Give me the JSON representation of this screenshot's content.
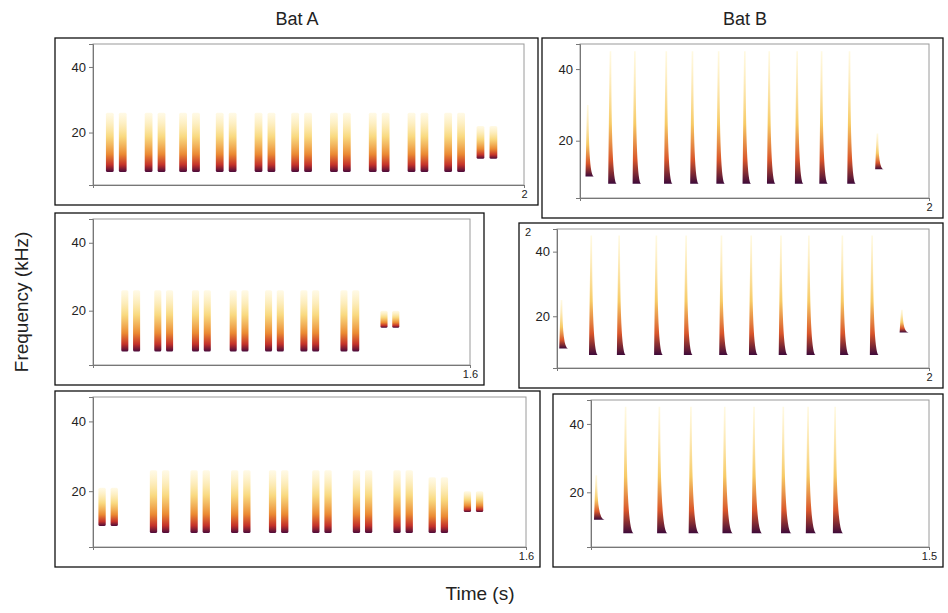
{
  "column_titles": [
    "Bat A",
    "Bat B"
  ],
  "y_label": "Frequency (kHz)",
  "x_label": "Time (s)",
  "chart_data": [
    {
      "type": "spectrogram",
      "marker": "double-streak",
      "xlim": [
        0,
        2
      ],
      "xticks": [
        2
      ],
      "ylim": [
        4,
        47
      ],
      "yticks": [
        20,
        40
      ],
      "call_duration": 0.12,
      "calls": [
        {
          "time": 0.06,
          "low": 8,
          "high": 26
        },
        {
          "time": 0.24,
          "low": 8,
          "high": 26
        },
        {
          "time": 0.4,
          "low": 8,
          "high": 26
        },
        {
          "time": 0.57,
          "low": 8,
          "high": 26
        },
        {
          "time": 0.75,
          "low": 8,
          "high": 26
        },
        {
          "time": 0.92,
          "low": 8,
          "high": 26
        },
        {
          "time": 1.1,
          "low": 8,
          "high": 26
        },
        {
          "time": 1.28,
          "low": 8,
          "high": 26
        },
        {
          "time": 1.46,
          "low": 8,
          "high": 26
        },
        {
          "time": 1.63,
          "low": 8,
          "high": 26
        },
        {
          "time": 1.78,
          "low": 12,
          "high": 22
        }
      ]
    },
    {
      "type": "spectrogram",
      "marker": "double-streak",
      "xlim": [
        0,
        1.6
      ],
      "xticks": [
        1.6
      ],
      "ylim": [
        4,
        47
      ],
      "yticks": [
        20,
        40
      ],
      "call_duration": 0.1,
      "calls": [
        {
          "time": 0.12,
          "low": 8,
          "high": 26
        },
        {
          "time": 0.26,
          "low": 8,
          "high": 26
        },
        {
          "time": 0.42,
          "low": 8,
          "high": 26
        },
        {
          "time": 0.58,
          "low": 8,
          "high": 26
        },
        {
          "time": 0.73,
          "low": 8,
          "high": 26
        },
        {
          "time": 0.88,
          "low": 8,
          "high": 26
        },
        {
          "time": 1.05,
          "low": 8,
          "high": 26
        },
        {
          "time": 1.22,
          "low": 15,
          "high": 20
        }
      ]
    },
    {
      "type": "spectrogram",
      "marker": "double-streak",
      "xlim": [
        0,
        1.6
      ],
      "xticks": [
        1.6
      ],
      "ylim": [
        4,
        47
      ],
      "yticks": [
        20,
        40
      ],
      "call_duration": 0.09,
      "calls": [
        {
          "time": 0.02,
          "low": 10,
          "high": 21
        },
        {
          "time": 0.21,
          "low": 8,
          "high": 26
        },
        {
          "time": 0.36,
          "low": 8,
          "high": 26
        },
        {
          "time": 0.51,
          "low": 8,
          "high": 26
        },
        {
          "time": 0.65,
          "low": 8,
          "high": 26
        },
        {
          "time": 0.81,
          "low": 8,
          "high": 26
        },
        {
          "time": 0.96,
          "low": 8,
          "high": 26
        },
        {
          "time": 1.11,
          "low": 8,
          "high": 26
        },
        {
          "time": 1.24,
          "low": 8,
          "high": 24
        },
        {
          "time": 1.37,
          "low": 14,
          "high": 20
        }
      ]
    },
    {
      "type": "spectrogram",
      "marker": "sweep",
      "xlim": [
        0,
        2
      ],
      "xticks": [
        2
      ],
      "ylim": [
        4,
        47
      ],
      "yticks": [
        20,
        40
      ],
      "call_duration": 0.04,
      "calls": [
        {
          "time": 0.04,
          "low": 10,
          "high": 30
        },
        {
          "time": 0.17,
          "low": 8,
          "high": 45
        },
        {
          "time": 0.31,
          "low": 8,
          "high": 45
        },
        {
          "time": 0.49,
          "low": 8,
          "high": 45
        },
        {
          "time": 0.64,
          "low": 8,
          "high": 45
        },
        {
          "time": 0.79,
          "low": 8,
          "high": 45
        },
        {
          "time": 0.94,
          "low": 8,
          "high": 45
        },
        {
          "time": 1.08,
          "low": 8,
          "high": 45
        },
        {
          "time": 1.24,
          "low": 8,
          "high": 45
        },
        {
          "time": 1.38,
          "low": 8,
          "high": 45
        },
        {
          "time": 1.54,
          "low": 8,
          "high": 45
        },
        {
          "time": 1.7,
          "low": 12,
          "high": 22
        }
      ]
    },
    {
      "type": "spectrogram",
      "marker": "sweep",
      "xlim": [
        0,
        2
      ],
      "xticks": [
        2
      ],
      "ylim": [
        4,
        47
      ],
      "yticks": [
        20,
        40
      ],
      "call_duration": 0.04,
      "annotations": [
        "2"
      ],
      "calls": [
        {
          "time": 0.02,
          "low": 10,
          "high": 25
        },
        {
          "time": 0.18,
          "low": 8,
          "high": 45
        },
        {
          "time": 0.33,
          "low": 8,
          "high": 45
        },
        {
          "time": 0.53,
          "low": 8,
          "high": 45
        },
        {
          "time": 0.69,
          "low": 8,
          "high": 45
        },
        {
          "time": 0.88,
          "low": 8,
          "high": 45
        },
        {
          "time": 1.04,
          "low": 8,
          "high": 45
        },
        {
          "time": 1.2,
          "low": 8,
          "high": 45
        },
        {
          "time": 1.35,
          "low": 8,
          "high": 45
        },
        {
          "time": 1.53,
          "low": 8,
          "high": 45
        },
        {
          "time": 1.69,
          "low": 8,
          "high": 45
        },
        {
          "time": 1.85,
          "low": 15,
          "high": 22
        }
      ]
    },
    {
      "type": "spectrogram",
      "marker": "sweep",
      "xlim": [
        0,
        1.5
      ],
      "xticks": [
        1.5
      ],
      "ylim": [
        4,
        47
      ],
      "yticks": [
        20,
        40
      ],
      "call_duration": 0.04,
      "calls": [
        {
          "time": 0.02,
          "low": 12,
          "high": 25
        },
        {
          "time": 0.15,
          "low": 8,
          "high": 45
        },
        {
          "time": 0.3,
          "low": 8,
          "high": 45
        },
        {
          "time": 0.44,
          "low": 8,
          "high": 45
        },
        {
          "time": 0.59,
          "low": 8,
          "high": 45
        },
        {
          "time": 0.72,
          "low": 8,
          "high": 45
        },
        {
          "time": 0.85,
          "low": 8,
          "high": 45
        },
        {
          "time": 0.96,
          "low": 8,
          "high": 45
        },
        {
          "time": 1.08,
          "low": 8,
          "high": 45
        }
      ]
    }
  ]
}
